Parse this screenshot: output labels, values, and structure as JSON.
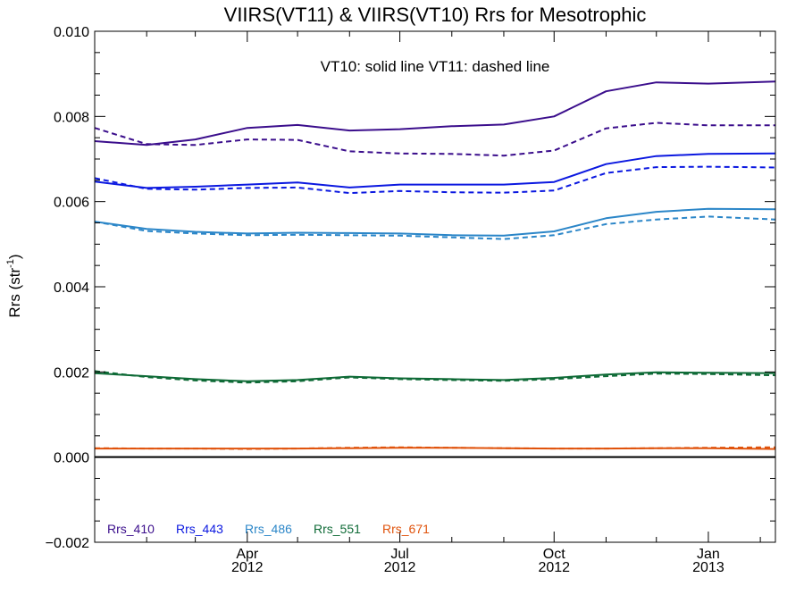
{
  "chart_data": {
    "type": "line",
    "title": "VIIRS(VT11) & VIIRS(VT10)  Rrs for Mesotrophic",
    "annotation": "VT10: solid line   VT11: dashed line",
    "ylabel": "Rrs (str",
    "ylabel_sup": "-1",
    "ylabel_close": ")",
    "xlabel": "",
    "ylim": [
      -0.002,
      0.01
    ],
    "xlim": [
      "2012-01-01",
      "2013-02-10"
    ],
    "yticks": [
      "0.010",
      "0.008",
      "0.006",
      "0.004",
      "0.002",
      "0.000",
      "−0.002"
    ],
    "xticks": [
      {
        "date": "2012-04-01",
        "label": "Apr",
        "year": "2012"
      },
      {
        "date": "2012-07-01",
        "label": "Jul",
        "year": "2012"
      },
      {
        "date": "2012-10-01",
        "label": "Oct",
        "year": "2012"
      },
      {
        "date": "2013-01-01",
        "label": "Jan",
        "year": "2013"
      }
    ],
    "zero_line": 0.0,
    "x": [
      "2012-01-01",
      "2012-02-01",
      "2012-03-01",
      "2012-04-01",
      "2012-05-01",
      "2012-06-01",
      "2012-07-01",
      "2012-08-01",
      "2012-09-01",
      "2012-10-01",
      "2012-11-01",
      "2012-12-01",
      "2013-01-01",
      "2013-02-10"
    ],
    "series": [
      {
        "name": "Rrs_410",
        "color": "#3b0e8c",
        "style": "solid",
        "values": [
          0.00742,
          0.00733,
          0.00746,
          0.00773,
          0.0078,
          0.00767,
          0.0077,
          0.00777,
          0.00781,
          0.008,
          0.00859,
          0.0088,
          0.00877,
          0.00882
        ]
      },
      {
        "name": "Rrs_410",
        "color": "#3b0e8c",
        "style": "dashed",
        "values": [
          0.00773,
          0.00735,
          0.00733,
          0.00746,
          0.00745,
          0.00718,
          0.00713,
          0.00712,
          0.00708,
          0.0072,
          0.00772,
          0.00785,
          0.00779,
          0.00779
        ]
      },
      {
        "name": "Rrs_443",
        "color": "#0b18e0",
        "style": "solid",
        "values": [
          0.00647,
          0.00632,
          0.00635,
          0.0064,
          0.00645,
          0.00633,
          0.0064,
          0.0064,
          0.0064,
          0.00646,
          0.00688,
          0.00707,
          0.00712,
          0.00713
        ]
      },
      {
        "name": "Rrs_443",
        "color": "#0b18e0",
        "style": "dashed",
        "values": [
          0.00655,
          0.0063,
          0.00628,
          0.00632,
          0.00633,
          0.0062,
          0.00625,
          0.00622,
          0.00621,
          0.00626,
          0.00667,
          0.00681,
          0.00682,
          0.0068
        ]
      },
      {
        "name": "Rrs_486",
        "color": "#2b86c8",
        "style": "solid",
        "values": [
          0.00553,
          0.00536,
          0.00529,
          0.00525,
          0.00527,
          0.00526,
          0.00525,
          0.00521,
          0.0052,
          0.0053,
          0.00561,
          0.00576,
          0.00583,
          0.00582
        ]
      },
      {
        "name": "Rrs_486",
        "color": "#2b86c8",
        "style": "dashed",
        "values": [
          0.00553,
          0.00531,
          0.00525,
          0.00521,
          0.00522,
          0.00521,
          0.0052,
          0.00516,
          0.00512,
          0.00521,
          0.00547,
          0.00558,
          0.00565,
          0.00558
        ]
      },
      {
        "name": "Rrs_551",
        "color": "#0e6a36",
        "style": "solid",
        "values": [
          0.00197,
          0.0019,
          0.00183,
          0.00178,
          0.00181,
          0.00189,
          0.00185,
          0.00183,
          0.00181,
          0.00186,
          0.00194,
          0.00199,
          0.00198,
          0.00197
        ]
      },
      {
        "name": "Rrs_551",
        "color": "#0e6a36",
        "style": "dashed",
        "values": [
          0.00202,
          0.00188,
          0.0018,
          0.00175,
          0.00178,
          0.00187,
          0.00183,
          0.00181,
          0.00179,
          0.00183,
          0.0019,
          0.00196,
          0.00195,
          0.00192
        ]
      },
      {
        "name": "Rrs_671",
        "color": "#e0530c",
        "style": "solid",
        "values": [
          0.0002,
          0.0002,
          0.0002,
          0.0002,
          0.0002,
          0.00021,
          0.00022,
          0.00022,
          0.00021,
          0.0002,
          0.0002,
          0.00021,
          0.00021,
          0.00019
        ]
      },
      {
        "name": "Rrs_671",
        "color": "#e0530c",
        "style": "dashed",
        "values": [
          0.00021,
          0.0002,
          0.0002,
          0.00019,
          0.0002,
          0.00022,
          0.00023,
          0.00022,
          0.00021,
          0.0002,
          0.0002,
          0.00021,
          0.00022,
          0.00023
        ]
      }
    ],
    "legend": [
      {
        "label": "Rrs_410",
        "color": "#3b0e8c"
      },
      {
        "label": "Rrs_443",
        "color": "#0b18e0"
      },
      {
        "label": "Rrs_486",
        "color": "#2b86c8"
      },
      {
        "label": "Rrs_551",
        "color": "#0e6a36"
      },
      {
        "label": "Rrs_671",
        "color": "#e0530c"
      }
    ],
    "legend_position": "bottom-left",
    "grid": false
  }
}
